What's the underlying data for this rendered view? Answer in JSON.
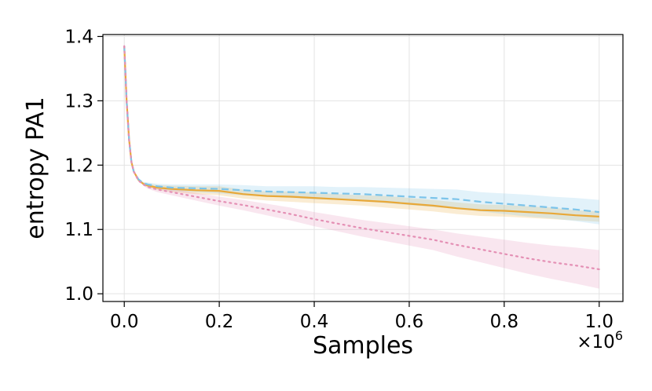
{
  "chart_data": {
    "type": "line",
    "title": "",
    "xlabel": "Samples",
    "ylabel": "entropy PA1",
    "x_offset_label": "×10",
    "x_offset_exponent": "6",
    "xlim": [
      -0.045,
      1.05
    ],
    "ylim": [
      0.988,
      1.403
    ],
    "xticks": [
      0.0,
      0.2,
      0.4,
      0.6,
      0.8,
      1.0
    ],
    "xtick_labels": [
      "0.0",
      "0.2",
      "0.4",
      "0.6",
      "0.8",
      "1.0"
    ],
    "yticks": [
      1.0,
      1.1,
      1.2,
      1.3,
      1.4
    ],
    "ytick_labels": [
      "1.0",
      "1.1",
      "1.2",
      "1.3",
      "1.4"
    ],
    "grid": true,
    "legend": "none",
    "series": [
      {
        "color": "#e8a838",
        "style": "solid",
        "x": [
          0.0,
          0.005,
          0.01,
          0.015,
          0.02,
          0.03,
          0.04,
          0.05,
          0.07,
          0.1,
          0.15,
          0.2,
          0.25,
          0.3,
          0.35,
          0.4,
          0.45,
          0.5,
          0.55,
          0.6,
          0.65,
          0.7,
          0.75,
          0.8,
          0.85,
          0.9,
          0.95,
          1.0
        ],
        "y": [
          1.385,
          1.3,
          1.24,
          1.205,
          1.19,
          1.177,
          1.171,
          1.168,
          1.165,
          1.163,
          1.161,
          1.16,
          1.155,
          1.152,
          1.151,
          1.149,
          1.147,
          1.145,
          1.143,
          1.14,
          1.137,
          1.133,
          1.13,
          1.129,
          1.127,
          1.125,
          1.122,
          1.12
        ],
        "lower": [
          1.385,
          1.3,
          1.24,
          1.205,
          1.19,
          1.177,
          1.169,
          1.165,
          1.161,
          1.158,
          1.155,
          1.153,
          1.148,
          1.145,
          1.143,
          1.141,
          1.139,
          1.137,
          1.134,
          1.131,
          1.128,
          1.124,
          1.121,
          1.12,
          1.118,
          1.116,
          1.114,
          1.112
        ],
        "upper": [
          1.385,
          1.3,
          1.24,
          1.205,
          1.19,
          1.177,
          1.173,
          1.171,
          1.169,
          1.168,
          1.167,
          1.167,
          1.162,
          1.159,
          1.159,
          1.157,
          1.155,
          1.153,
          1.152,
          1.149,
          1.146,
          1.142,
          1.139,
          1.138,
          1.136,
          1.134,
          1.13,
          1.128
        ]
      },
      {
        "color": "#7cc4ea",
        "style": "dashed",
        "x": [
          0.0,
          0.005,
          0.01,
          0.015,
          0.02,
          0.03,
          0.04,
          0.05,
          0.07,
          0.1,
          0.15,
          0.2,
          0.25,
          0.3,
          0.35,
          0.4,
          0.45,
          0.5,
          0.55,
          0.6,
          0.65,
          0.7,
          0.75,
          0.8,
          0.85,
          0.9,
          0.95,
          1.0
        ],
        "y": [
          1.385,
          1.3,
          1.24,
          1.205,
          1.19,
          1.178,
          1.172,
          1.17,
          1.167,
          1.165,
          1.164,
          1.163,
          1.161,
          1.159,
          1.158,
          1.157,
          1.156,
          1.155,
          1.153,
          1.151,
          1.149,
          1.147,
          1.143,
          1.14,
          1.137,
          1.134,
          1.131,
          1.127
        ],
        "lower": [
          1.385,
          1.3,
          1.24,
          1.205,
          1.19,
          1.178,
          1.17,
          1.167,
          1.163,
          1.16,
          1.158,
          1.156,
          1.153,
          1.151,
          1.149,
          1.147,
          1.146,
          1.144,
          1.141,
          1.138,
          1.135,
          1.132,
          1.128,
          1.124,
          1.12,
          1.117,
          1.113,
          1.108
        ],
        "upper": [
          1.385,
          1.3,
          1.24,
          1.205,
          1.19,
          1.178,
          1.174,
          1.173,
          1.171,
          1.17,
          1.17,
          1.17,
          1.169,
          1.167,
          1.167,
          1.167,
          1.166,
          1.166,
          1.165,
          1.164,
          1.163,
          1.162,
          1.158,
          1.156,
          1.154,
          1.151,
          1.149,
          1.146
        ]
      },
      {
        "color": "#e48fb4",
        "style": "dotted",
        "x": [
          0.0,
          0.005,
          0.01,
          0.015,
          0.02,
          0.03,
          0.04,
          0.05,
          0.07,
          0.1,
          0.15,
          0.2,
          0.25,
          0.3,
          0.35,
          0.4,
          0.45,
          0.5,
          0.55,
          0.6,
          0.65,
          0.7,
          0.75,
          0.8,
          0.85,
          0.9,
          0.95,
          1.0
        ],
        "y": [
          1.385,
          1.3,
          1.24,
          1.205,
          1.19,
          1.176,
          1.17,
          1.166,
          1.162,
          1.158,
          1.151,
          1.144,
          1.138,
          1.131,
          1.124,
          1.116,
          1.109,
          1.102,
          1.096,
          1.09,
          1.084,
          1.076,
          1.069,
          1.062,
          1.055,
          1.049,
          1.044,
          1.038
        ],
        "lower": [
          1.385,
          1.3,
          1.24,
          1.205,
          1.19,
          1.176,
          1.168,
          1.163,
          1.158,
          1.153,
          1.145,
          1.137,
          1.13,
          1.122,
          1.114,
          1.105,
          1.097,
          1.089,
          1.082,
          1.075,
          1.068,
          1.058,
          1.049,
          1.04,
          1.031,
          1.023,
          1.016,
          1.008
        ],
        "upper": [
          1.385,
          1.3,
          1.24,
          1.205,
          1.19,
          1.176,
          1.172,
          1.169,
          1.166,
          1.163,
          1.157,
          1.151,
          1.146,
          1.14,
          1.134,
          1.127,
          1.121,
          1.115,
          1.11,
          1.105,
          1.1,
          1.094,
          1.089,
          1.084,
          1.079,
          1.075,
          1.072,
          1.068
        ]
      }
    ]
  }
}
